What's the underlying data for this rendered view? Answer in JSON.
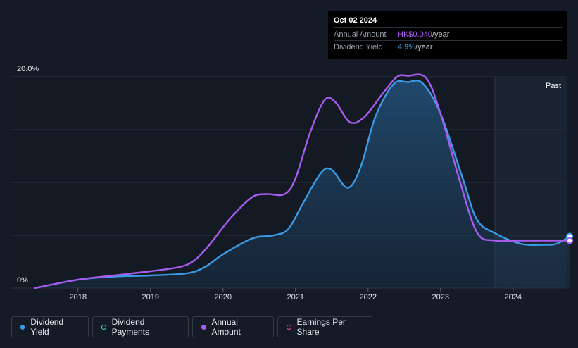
{
  "tooltip": {
    "date": "Oct 02 2024",
    "rows": [
      {
        "label": "Annual Amount",
        "value": "HK$0.040",
        "unit": "/year",
        "color": "#a95cf0"
      },
      {
        "label": "Dividend Yield",
        "value": "4.9%",
        "unit": "/year",
        "color": "#3a9be6"
      }
    ]
  },
  "legend": [
    {
      "label": "Dividend Yield",
      "color": "#3a9be6",
      "filled": true
    },
    {
      "label": "Dividend Payments",
      "color": "#4fd1c5",
      "filled": false
    },
    {
      "label": "Annual Amount",
      "color": "#a95cf0",
      "filled": true
    },
    {
      "label": "Earnings Per Share",
      "color": "#e04f8a",
      "filled": false
    }
  ],
  "chart_data": {
    "type": "line",
    "y_tick_labels": [
      "20.0%",
      "0%"
    ],
    "ylim": [
      0,
      20
    ],
    "xlim": [
      2017.4,
      2024.78
    ],
    "x_ticks": [
      2018,
      2019,
      2020,
      2021,
      2022,
      2023,
      2024
    ],
    "past_region_start": 2023.75,
    "past_label": "Past",
    "grid": true,
    "series": [
      {
        "name": "Dividend Yield",
        "color": "#3a9be6",
        "fill": true,
        "points": [
          [
            2017.4,
            0
          ],
          [
            2018,
            0.8
          ],
          [
            2018.5,
            1.1
          ],
          [
            2019,
            1.2
          ],
          [
            2019.5,
            1.4
          ],
          [
            2019.75,
            2.0
          ],
          [
            2020,
            3.2
          ],
          [
            2020.4,
            4.7
          ],
          [
            2020.7,
            5.0
          ],
          [
            2020.9,
            5.6
          ],
          [
            2021.1,
            8.0
          ],
          [
            2021.35,
            10.9
          ],
          [
            2021.5,
            11.2
          ],
          [
            2021.72,
            9.5
          ],
          [
            2021.9,
            11.5
          ],
          [
            2022.1,
            16.2
          ],
          [
            2022.35,
            19.3
          ],
          [
            2022.55,
            19.5
          ],
          [
            2022.75,
            19.4
          ],
          [
            2023.0,
            16.5
          ],
          [
            2023.3,
            10.5
          ],
          [
            2023.5,
            6.5
          ],
          [
            2023.75,
            5.2
          ],
          [
            2024.1,
            4.2
          ],
          [
            2024.4,
            4.1
          ],
          [
            2024.6,
            4.2
          ],
          [
            2024.78,
            4.9
          ]
        ]
      },
      {
        "name": "Annual Amount",
        "color": "#a95cf0",
        "fill": false,
        "points": [
          [
            2017.4,
            0
          ],
          [
            2018,
            0.8
          ],
          [
            2018.5,
            1.2
          ],
          [
            2019,
            1.6
          ],
          [
            2019.4,
            2.0
          ],
          [
            2019.6,
            2.6
          ],
          [
            2019.8,
            4.0
          ],
          [
            2020.1,
            6.6
          ],
          [
            2020.4,
            8.6
          ],
          [
            2020.6,
            8.9
          ],
          [
            2020.85,
            8.9
          ],
          [
            2021.0,
            10.4
          ],
          [
            2021.2,
            14.7
          ],
          [
            2021.4,
            17.8
          ],
          [
            2021.55,
            17.6
          ],
          [
            2021.75,
            15.7
          ],
          [
            2021.95,
            16.2
          ],
          [
            2022.2,
            18.4
          ],
          [
            2022.4,
            20.0
          ],
          [
            2022.55,
            20.1
          ],
          [
            2022.8,
            19.9
          ],
          [
            2023.0,
            16.5
          ],
          [
            2023.25,
            10.5
          ],
          [
            2023.5,
            5.3
          ],
          [
            2023.75,
            4.5
          ],
          [
            2024.1,
            4.5
          ],
          [
            2024.5,
            4.5
          ],
          [
            2024.78,
            4.5
          ]
        ]
      }
    ]
  }
}
